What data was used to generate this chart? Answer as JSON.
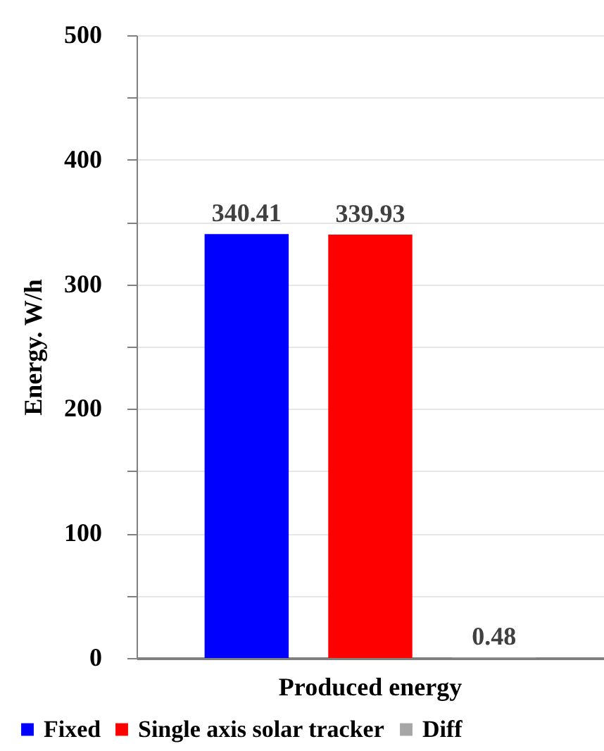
{
  "chart_data": {
    "type": "bar",
    "categories": [
      null,
      "Produced energy",
      null
    ],
    "ylabel": "Energy. W/h",
    "series": [
      {
        "name": "Fixed",
        "color": "#0000ff",
        "values": [
          340.41,
          null,
          null
        ]
      },
      {
        "name": "Single axis solar tracker",
        "color": "#ff0000",
        "values": [
          null,
          339.93,
          null
        ]
      },
      {
        "name": "Diff",
        "color": "#a6a6a6",
        "values": [
          null,
          null,
          0.48
        ]
      }
    ],
    "ylim": [
      0,
      500
    ],
    "yticks": [
      0,
      {
        "value": 50,
        "label": null
      },
      100,
      {
        "value": 150,
        "label": null
      },
      200,
      {
        "value": 250,
        "label": null
      },
      300,
      {
        "value": 350,
        "label": null
      },
      400,
      {
        "value": 450,
        "label": null
      },
      500
    ],
    "grid": "y",
    "legend": "bottom",
    "data_labels": true
  }
}
